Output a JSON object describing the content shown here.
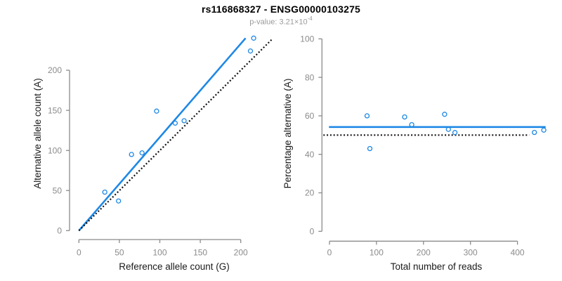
{
  "title": "rs116868327 - ENSG00000103275",
  "subtitle": {
    "prefix": "p-value: 3.21×10",
    "exponent": "-4"
  },
  "colors": {
    "blue": "#1E88E5",
    "black": "#111111",
    "axis": "#8B8B8B",
    "tick_label": "#8B8B8B",
    "axis_title": "#1A1A1A",
    "title_text": "#000000",
    "subtitle_text": "#9A9A9A",
    "background": "#FFFFFF"
  },
  "chart_data": [
    {
      "name": "allele-count-scatter",
      "type": "scatter",
      "xlabel": "Reference allele count (G)",
      "ylabel": "Alternative allele count (A)",
      "xlim": [
        0,
        230
      ],
      "ylim": [
        0,
        245
      ],
      "xticks": [
        0,
        50,
        100,
        150,
        200
      ],
      "yticks": [
        0,
        50,
        100,
        150,
        200
      ],
      "grid": false,
      "legend": null,
      "points": [
        {
          "x": 32,
          "y": 48
        },
        {
          "x": 49,
          "y": 37
        },
        {
          "x": 65,
          "y": 95
        },
        {
          "x": 78,
          "y": 97
        },
        {
          "x": 96,
          "y": 149
        },
        {
          "x": 119,
          "y": 134
        },
        {
          "x": 130,
          "y": 137
        },
        {
          "x": 212,
          "y": 224
        },
        {
          "x": 216,
          "y": 240
        }
      ],
      "lines": [
        {
          "name": "regression-line",
          "style": "solid",
          "color": "blue",
          "x1": 0,
          "y1": 0,
          "x2": 206,
          "y2": 240
        },
        {
          "name": "identity-line",
          "style": "dotted",
          "color": "black",
          "x1": 0,
          "y1": 0,
          "x2": 238,
          "y2": 238
        }
      ]
    },
    {
      "name": "percentage-scatter",
      "type": "scatter",
      "xlabel": "Total number of reads",
      "ylabel": "Percentage alternative (A)",
      "xlim": [
        0,
        460
      ],
      "ylim": [
        0,
        100
      ],
      "xticks": [
        0,
        100,
        200,
        300,
        400
      ],
      "yticks": [
        0,
        20,
        40,
        60,
        80,
        100
      ],
      "grid": false,
      "legend": null,
      "points": [
        {
          "x": 80,
          "y": 60
        },
        {
          "x": 86,
          "y": 43
        },
        {
          "x": 160,
          "y": 59.4
        },
        {
          "x": 175,
          "y": 55.4
        },
        {
          "x": 245,
          "y": 60.8
        },
        {
          "x": 253,
          "y": 53
        },
        {
          "x": 267,
          "y": 51.3
        },
        {
          "x": 436,
          "y": 51.4
        },
        {
          "x": 456,
          "y": 52.6
        }
      ],
      "lines": [
        {
          "name": "mean-percentage-line",
          "style": "solid",
          "color": "blue",
          "x1": -1,
          "y1": 54.2,
          "x2": 460,
          "y2": 54.2
        },
        {
          "name": "fifty-percent-line",
          "style": "dotted",
          "color": "black",
          "x1": -13,
          "y1": 50,
          "x2": 425,
          "y2": 50
        }
      ]
    }
  ]
}
